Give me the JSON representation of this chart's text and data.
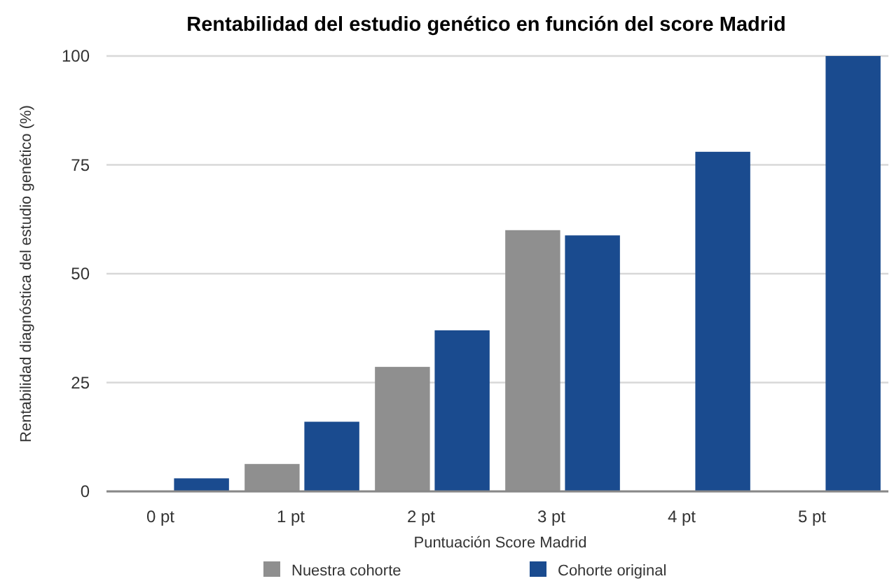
{
  "chart_data": {
    "type": "bar",
    "title": "Rentabilidad del estudio genético en función del score Madrid",
    "xlabel": "Puntuación Score Madrid",
    "ylabel": "Rentabilidad diagnóstica del estudio genético (%)",
    "categories": [
      "0 pt",
      "1 pt",
      "2 pt",
      "3 pt",
      "4 pt",
      "5 pt"
    ],
    "series": [
      {
        "name": "Nuestra cohorte",
        "color": "#8f8f8f",
        "values": [
          null,
          6.3,
          28.6,
          60,
          null,
          null
        ]
      },
      {
        "name": "Cohorte original",
        "color": "#1a4b8f",
        "values": [
          3,
          16,
          37,
          58.8,
          78,
          100
        ]
      }
    ],
    "ylim": [
      0,
      100
    ],
    "yticks": [
      0,
      25,
      50,
      75,
      100
    ],
    "grid": "y",
    "legend": "bottom"
  }
}
